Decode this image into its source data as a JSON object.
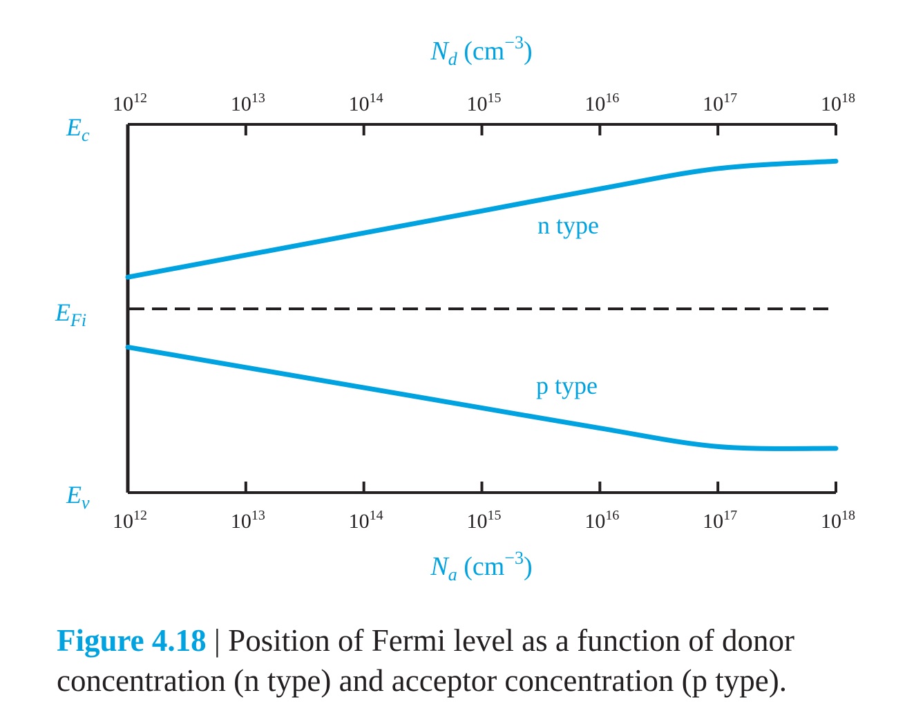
{
  "chart_data": {
    "type": "line",
    "top_axis": {
      "label": {
        "var": "N",
        "sub": "d",
        "unit_pre": " (cm",
        "unit_exp": "−3",
        "unit_post": ")"
      },
      "scale": "log",
      "ticks": [
        {
          "base": "10",
          "exp": "12"
        },
        {
          "base": "10",
          "exp": "13"
        },
        {
          "base": "10",
          "exp": "14"
        },
        {
          "base": "10",
          "exp": "15"
        },
        {
          "base": "10",
          "exp": "16"
        },
        {
          "base": "10",
          "exp": "17"
        },
        {
          "base": "10",
          "exp": "18"
        }
      ]
    },
    "bottom_axis": {
      "label": {
        "var": "N",
        "sub": "a",
        "unit_pre": " (cm",
        "unit_exp": "−3",
        "unit_post": ")"
      },
      "scale": "log",
      "ticks": [
        {
          "base": "10",
          "exp": "12"
        },
        {
          "base": "10",
          "exp": "13"
        },
        {
          "base": "10",
          "exp": "14"
        },
        {
          "base": "10",
          "exp": "15"
        },
        {
          "base": "10",
          "exp": "16"
        },
        {
          "base": "10",
          "exp": "17"
        },
        {
          "base": "10",
          "exp": "18"
        }
      ]
    },
    "xlim": [
      1000000000000.0,
      1e+18
    ],
    "ylim": [
      -1,
      1
    ],
    "levels": {
      "ec": {
        "main": "E",
        "sub": "c",
        "value": 1
      },
      "efi": {
        "main": "E",
        "sub": "Fi",
        "value": 0
      },
      "ev": {
        "main": "E",
        "sub": "v",
        "value": -1
      }
    },
    "series": [
      {
        "name": "n type",
        "color": "#00a3e0",
        "x": [
          1000000000000.0,
          10000000000000.0,
          100000000000000.0,
          1000000000000000.0,
          1e+16,
          1e+17,
          1e+18
        ],
        "y": [
          0.17,
          0.29,
          0.41,
          0.53,
          0.65,
          0.76,
          0.8
        ]
      },
      {
        "name": "p type",
        "color": "#00a3e0",
        "x": [
          1000000000000.0,
          10000000000000.0,
          100000000000000.0,
          1000000000000000.0,
          1e+16,
          1e+17,
          1e+18
        ],
        "y": [
          -0.21,
          -0.32,
          -0.43,
          -0.54,
          -0.65,
          -0.75,
          -0.76
        ]
      }
    ],
    "grid": false
  },
  "caption": {
    "number": "Figure 4.18",
    "separator": " | ",
    "text": "Position of Fermi level as a function of donor concentration (n type) and acceptor concentration (p type)."
  }
}
